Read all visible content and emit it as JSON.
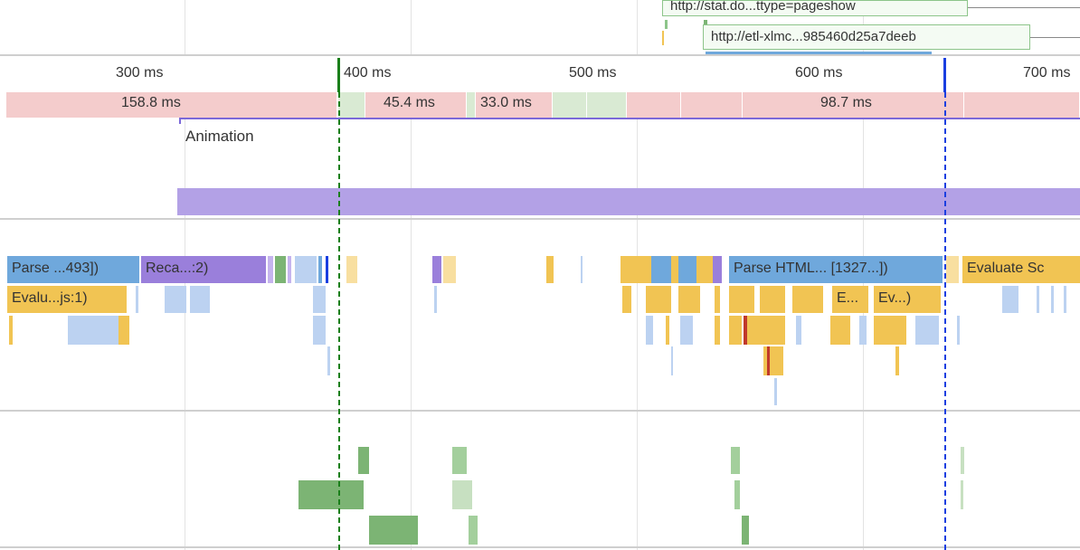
{
  "ruler": {
    "ticks": [
      "300 ms",
      "400 ms",
      "500 ms",
      "600 ms",
      "700 ms"
    ]
  },
  "network": {
    "request1": "http://stat.do...ttype=pageshow",
    "request2": "http://etl-xlmc...985460d25a7deeb"
  },
  "frames": {
    "f1": "158.8 ms",
    "f2": "45.4 ms",
    "f3": "33.0 ms",
    "f4": "98.7 ms"
  },
  "animation": {
    "label": "Animation"
  },
  "main": {
    "parse1": "Parse ...493])",
    "recalc": "Reca...:2)",
    "parse2": "Parse HTML... [1327...])",
    "evaluate1": "Evaluate Sc",
    "evalu": "Evalu...js:1)",
    "e_short": "E...",
    "ev_short": "Ev...)"
  },
  "colors": {
    "frame_dropped": "#f4cccc",
    "frame_ok": "#d9ead3",
    "scripting": "#f1c453",
    "parse": "#6fa8dc",
    "rendering": "#9a7fdb",
    "painting": "#7cb474",
    "marker_green": "#1a7f1a",
    "marker_blue": "#1a3fe0",
    "animation": "#b3a1e6"
  }
}
